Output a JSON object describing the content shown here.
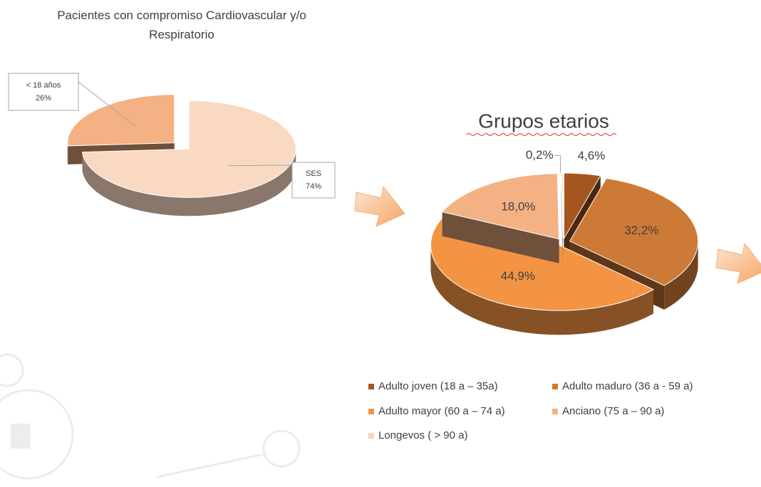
{
  "chart_data": [
    {
      "type": "pie3d",
      "title": "Pacientes con compromiso Cardiovascular y/o Respiratorio",
      "categories": [
        "< 18 años",
        "SES"
      ],
      "values": [
        26,
        74
      ],
      "value_labels": [
        "26%",
        "74%"
      ],
      "colors": [
        "#f4b183",
        "#f9d9c2"
      ]
    },
    {
      "type": "pie3d",
      "title": "Grupos etarios",
      "categories": [
        "Adulto joven (18 a – 35a)",
        "Adulto maduro (36 a - 59 a)",
        "Adulto mayor (60 a – 74 a)",
        "Anciano  (75 a – 90 a)",
        "Longevos ( > 90 a)"
      ],
      "values": [
        4.6,
        32.2,
        44.9,
        18.0,
        0.2
      ],
      "value_labels": [
        "4,6%",
        "32,2%",
        "44,9%",
        "18,0%",
        "0,2%"
      ],
      "colors": [
        "#a5561f",
        "#cd7a36",
        "#f29443",
        "#f4b183",
        "#f9d3ba"
      ],
      "legend": "bottom"
    }
  ]
}
